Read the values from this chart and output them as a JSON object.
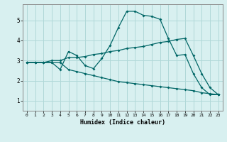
{
  "bg_color": "#d8f0f0",
  "grid_color": "#b0d8d8",
  "line_color": "#006666",
  "xlabel": "Humidex (Indice chaleur)",
  "xlim": [
    -0.5,
    23.5
  ],
  "ylim": [
    0.5,
    5.8
  ],
  "xticks": [
    0,
    1,
    2,
    3,
    4,
    5,
    6,
    7,
    8,
    9,
    10,
    11,
    12,
    13,
    14,
    15,
    16,
    17,
    18,
    19,
    20,
    21,
    22,
    23
  ],
  "yticks": [
    1,
    2,
    3,
    4,
    5
  ],
  "line1_x": [
    0,
    1,
    2,
    3,
    4,
    5,
    6,
    7,
    8,
    9,
    10,
    11,
    12,
    13,
    14,
    15,
    16,
    17,
    18,
    19,
    20,
    21,
    22,
    23
  ],
  "line1_y": [
    2.9,
    2.9,
    2.9,
    2.9,
    2.55,
    3.45,
    3.25,
    2.75,
    2.6,
    3.1,
    3.75,
    4.65,
    5.45,
    5.45,
    5.25,
    5.2,
    5.05,
    4.1,
    3.25,
    3.3,
    2.35,
    1.65,
    1.3,
    1.3
  ],
  "line2_x": [
    0,
    1,
    2,
    3,
    4,
    5,
    6,
    7,
    8,
    9,
    10,
    11,
    12,
    13,
    14,
    15,
    16,
    17,
    18,
    19,
    20,
    21,
    22,
    23
  ],
  "line2_y": [
    2.9,
    2.9,
    2.9,
    3.0,
    3.0,
    3.15,
    3.15,
    3.2,
    3.3,
    3.35,
    3.45,
    3.5,
    3.6,
    3.65,
    3.7,
    3.8,
    3.9,
    3.95,
    4.05,
    4.1,
    3.25,
    2.35,
    1.65,
    1.3
  ],
  "line3_x": [
    0,
    1,
    2,
    3,
    4,
    5,
    6,
    7,
    8,
    9,
    10,
    11,
    12,
    13,
    14,
    15,
    16,
    17,
    18,
    19,
    20,
    21,
    22,
    23
  ],
  "line3_y": [
    2.9,
    2.9,
    2.9,
    2.9,
    2.9,
    2.55,
    2.45,
    2.35,
    2.25,
    2.15,
    2.05,
    1.95,
    1.9,
    1.85,
    1.8,
    1.75,
    1.7,
    1.65,
    1.6,
    1.55,
    1.5,
    1.4,
    1.35,
    1.3
  ]
}
